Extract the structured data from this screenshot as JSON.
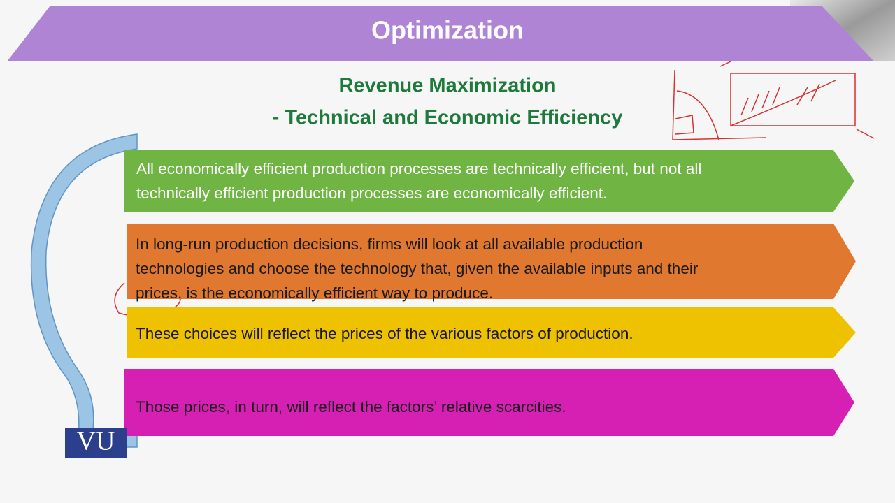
{
  "header": {
    "title": "Optimization"
  },
  "subtitle": {
    "lines": [
      "Revenue Maximization",
      "-  Technical and Economic Efficiency"
    ]
  },
  "boxes": [
    {
      "lines": [
        "All economically efficient production processes are technically efficient, but not all",
        "technically efficient production processes are economically efficient."
      ]
    },
    {
      "lines": [
        "In long-run production decisions, firms will look at all available production",
        "technologies and choose the technology that, given the available inputs and their",
        "prices, is the economically efficient way to produce."
      ]
    },
    {
      "lines": [
        "These choices will reflect the prices of the various factors of production."
      ]
    },
    {
      "lines": [
        "Those prices, in turn, will reflect the factors’ relative scarcities."
      ]
    }
  ],
  "logo": {
    "text": "VU"
  }
}
